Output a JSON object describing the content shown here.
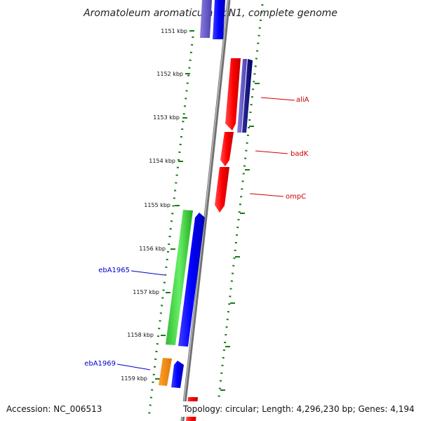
{
  "title": "Aromatoleum aromaticum EbN1, complete genome",
  "footer": {
    "accession": "Accession: NC_006513",
    "summary": "Topology: circular; Length: 4,296,230 bp; Genes: 4,194"
  },
  "scale_ticks": [
    "1151 kbp",
    "1152 kbp",
    "1153 kbp",
    "1154 kbp",
    "1155 kbp",
    "1156 kbp",
    "1157 kbp",
    "1158 kbp",
    "1159 kbp"
  ],
  "genes": [
    {
      "name": "aliA",
      "color": "#cc0000"
    },
    {
      "name": "badK",
      "color": "#cc0000"
    },
    {
      "name": "ompC",
      "color": "#cc0000"
    },
    {
      "name": "ebA1965",
      "color": "#0000cc"
    },
    {
      "name": "ebA1969",
      "color": "#0000cc"
    }
  ],
  "colors": {
    "backbone": "#888888",
    "dotted_ring": "#1a7a1a",
    "forward_gene": "#ff0000",
    "reverse_gene": "#0000ff",
    "rna_gene": "#33cc33",
    "other_gene": "#ff8c00",
    "muted_gene": "#6a5acd"
  }
}
